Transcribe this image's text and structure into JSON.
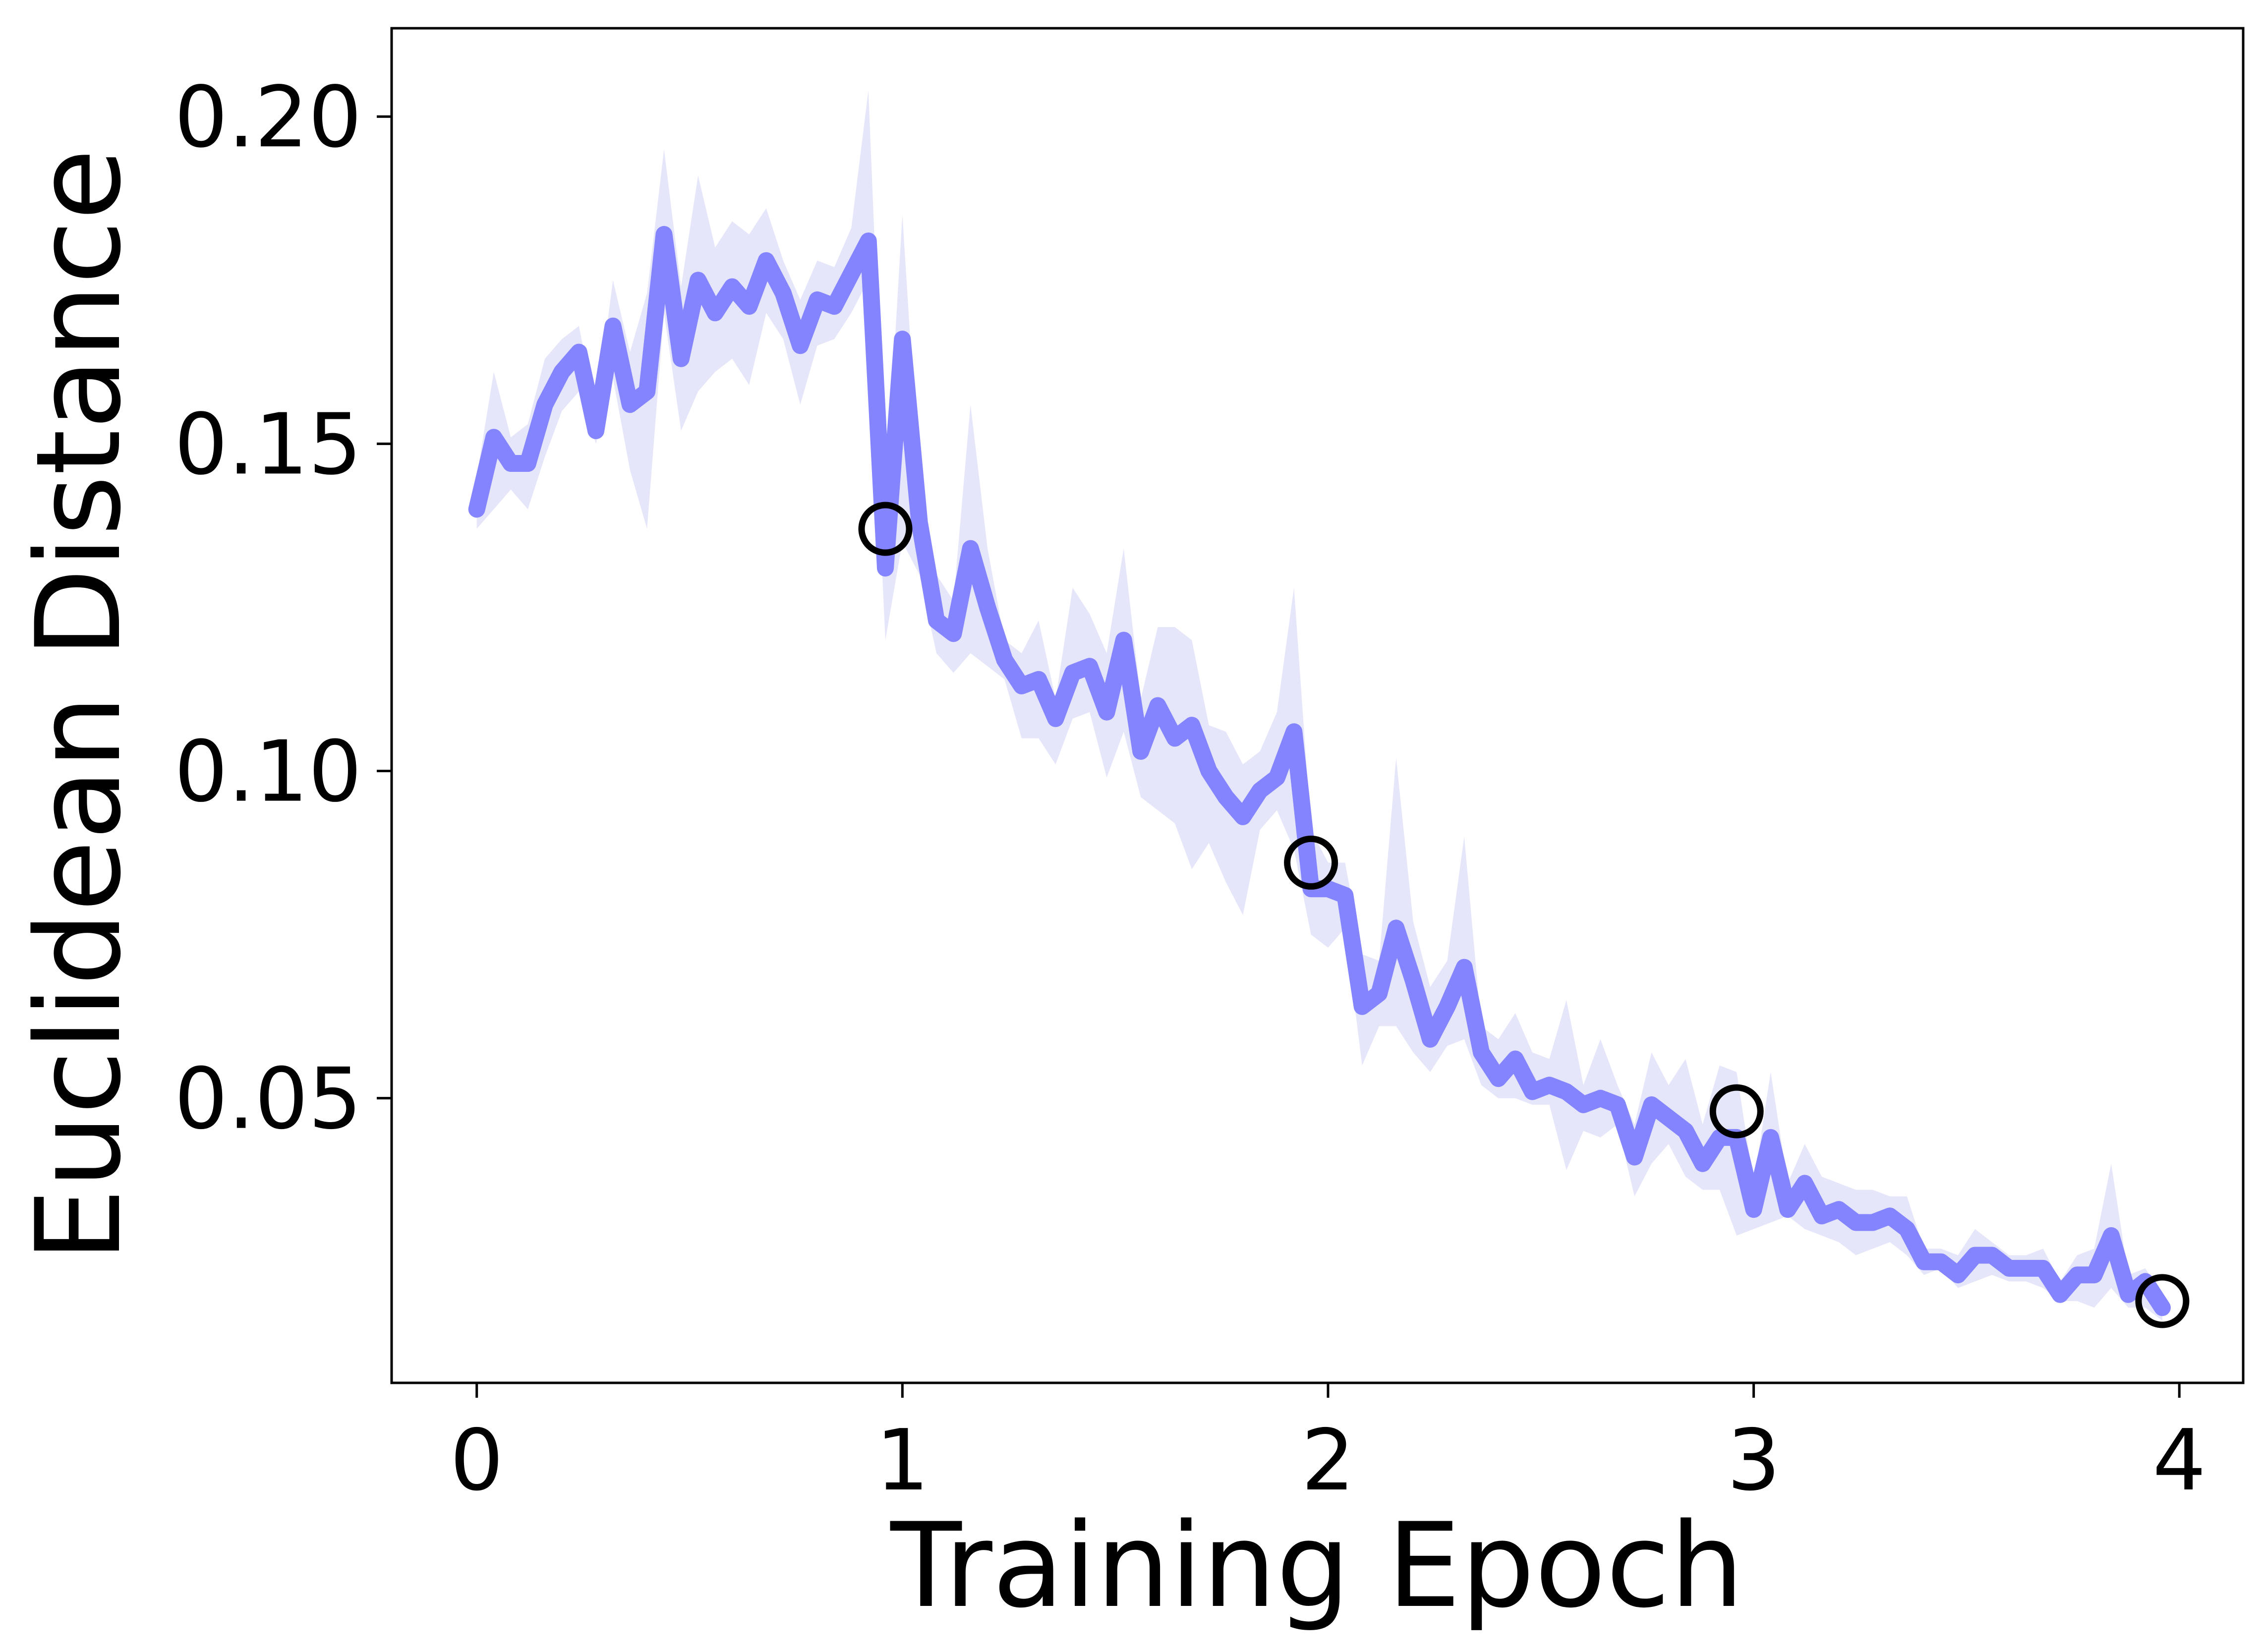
{
  "chart_data": {
    "type": "line",
    "title": "",
    "xlabel": "Training Epoch",
    "ylabel": "Euclidean Distance",
    "xlim": [
      -0.2,
      4.15
    ],
    "ylim": [
      0.0065,
      0.2135
    ],
    "xticks": [
      0,
      1,
      2,
      3,
      4
    ],
    "xtick_labels": [
      "0",
      "1",
      "2",
      "3",
      "4"
    ],
    "yticks": [
      0.05,
      0.1,
      0.15,
      0.2
    ],
    "ytick_labels": [
      "0.05",
      "0.10",
      "0.15",
      "0.20"
    ],
    "grid": false,
    "legend": "none",
    "colors": {
      "line": "#8484ff",
      "band": "#e6e6fb",
      "marker": "#000000"
    },
    "series": [
      {
        "x": [
          0.0,
          0.04,
          0.08,
          0.12,
          0.16,
          0.2,
          0.24,
          0.28,
          0.32,
          0.36,
          0.4,
          0.44,
          0.48,
          0.52,
          0.56,
          0.6,
          0.64,
          0.68,
          0.72,
          0.76,
          0.8,
          0.84,
          0.88,
          0.92,
          0.96,
          1.0,
          1.04,
          1.08,
          1.12,
          1.16,
          1.2,
          1.24,
          1.28,
          1.32,
          1.36,
          1.4,
          1.44,
          1.48,
          1.52,
          1.56,
          1.6,
          1.64,
          1.68,
          1.72,
          1.76,
          1.8,
          1.84,
          1.88,
          1.92,
          1.96,
          2.0,
          2.04,
          2.08,
          2.12,
          2.16,
          2.2,
          2.24,
          2.28,
          2.32,
          2.36,
          2.4,
          2.44,
          2.48,
          2.52,
          2.56,
          2.6,
          2.64,
          2.68,
          2.72,
          2.76,
          2.8,
          2.84,
          2.88,
          2.92,
          2.96,
          3.0,
          3.04,
          3.08,
          3.12,
          3.16,
          3.2,
          3.24,
          3.28,
          3.32,
          3.36,
          3.4,
          3.44,
          3.48,
          3.52,
          3.56,
          3.6,
          3.64,
          3.68,
          3.72,
          3.76,
          3.8,
          3.84,
          3.88,
          3.92,
          3.96
        ],
        "y": [
          0.14,
          0.151,
          0.147,
          0.147,
          0.156,
          0.161,
          0.164,
          0.152,
          0.168,
          0.156,
          0.158,
          0.182,
          0.163,
          0.175,
          0.17,
          0.174,
          0.171,
          0.178,
          0.173,
          0.165,
          0.172,
          0.171,
          0.176,
          0.181,
          0.131,
          0.166,
          0.138,
          0.123,
          0.121,
          0.134,
          0.125,
          0.117,
          0.113,
          0.114,
          0.108,
          0.115,
          0.116,
          0.109,
          0.12,
          0.103,
          0.11,
          0.105,
          0.107,
          0.1,
          0.096,
          0.093,
          0.097,
          0.099,
          0.106,
          0.082,
          0.082,
          0.081,
          0.064,
          0.066,
          0.076,
          0.068,
          0.059,
          0.064,
          0.07,
          0.057,
          0.053,
          0.056,
          0.051,
          0.052,
          0.051,
          0.049,
          0.05,
          0.049,
          0.041,
          0.049,
          0.047,
          0.045,
          0.04,
          0.044,
          0.044,
          0.033,
          0.044,
          0.033,
          0.037,
          0.032,
          0.033,
          0.031,
          0.031,
          0.032,
          0.03,
          0.025,
          0.025,
          0.023,
          0.026,
          0.026,
          0.024,
          0.024,
          0.024,
          0.02,
          0.023,
          0.023,
          0.029,
          0.02,
          0.022,
          0.018
        ],
        "y_lower": [
          0.137,
          0.14,
          0.143,
          0.14,
          0.148,
          0.155,
          0.158,
          0.15,
          0.16,
          0.146,
          0.137,
          0.17,
          0.152,
          0.158,
          0.161,
          0.163,
          0.159,
          0.17,
          0.166,
          0.156,
          0.165,
          0.166,
          0.17,
          0.175,
          0.12,
          0.135,
          0.13,
          0.118,
          0.115,
          0.118,
          0.116,
          0.114,
          0.105,
          0.105,
          0.101,
          0.108,
          0.109,
          0.099,
          0.106,
          0.096,
          0.094,
          0.092,
          0.085,
          0.089,
          0.083,
          0.078,
          0.091,
          0.094,
          0.088,
          0.075,
          0.073,
          0.076,
          0.055,
          0.061,
          0.061,
          0.057,
          0.054,
          0.058,
          0.059,
          0.052,
          0.05,
          0.05,
          0.049,
          0.049,
          0.039,
          0.045,
          0.044,
          0.046,
          0.035,
          0.04,
          0.043,
          0.038,
          0.036,
          0.036,
          0.029,
          0.03,
          0.031,
          0.032,
          0.03,
          0.029,
          0.028,
          0.026,
          0.027,
          0.028,
          0.026,
          0.023,
          0.024,
          0.021,
          0.022,
          0.023,
          0.022,
          0.022,
          0.021,
          0.019,
          0.019,
          0.018,
          0.021,
          0.018,
          0.018,
          0.016
        ],
        "y_upper": [
          0.145,
          0.161,
          0.151,
          0.153,
          0.163,
          0.166,
          0.168,
          0.155,
          0.175,
          0.164,
          0.173,
          0.195,
          0.174,
          0.191,
          0.18,
          0.184,
          0.182,
          0.186,
          0.178,
          0.172,
          0.178,
          0.177,
          0.183,
          0.204,
          0.141,
          0.185,
          0.144,
          0.13,
          0.126,
          0.156,
          0.134,
          0.12,
          0.118,
          0.123,
          0.111,
          0.128,
          0.124,
          0.118,
          0.134,
          0.111,
          0.122,
          0.122,
          0.12,
          0.107,
          0.106,
          0.101,
          0.103,
          0.109,
          0.128,
          0.091,
          0.086,
          0.086,
          0.072,
          0.071,
          0.102,
          0.077,
          0.067,
          0.071,
          0.09,
          0.061,
          0.059,
          0.063,
          0.057,
          0.056,
          0.065,
          0.052,
          0.059,
          0.052,
          0.046,
          0.057,
          0.052,
          0.056,
          0.046,
          0.055,
          0.054,
          0.037,
          0.054,
          0.037,
          0.043,
          0.038,
          0.037,
          0.036,
          0.036,
          0.035,
          0.035,
          0.027,
          0.027,
          0.026,
          0.03,
          0.028,
          0.026,
          0.026,
          0.027,
          0.022,
          0.026,
          0.027,
          0.04,
          0.023,
          0.024,
          0.02
        ]
      }
    ],
    "markers": {
      "x": [
        0.96,
        1.96,
        2.96,
        3.96
      ],
      "y": [
        0.137,
        0.086,
        0.048,
        0.019
      ]
    }
  }
}
